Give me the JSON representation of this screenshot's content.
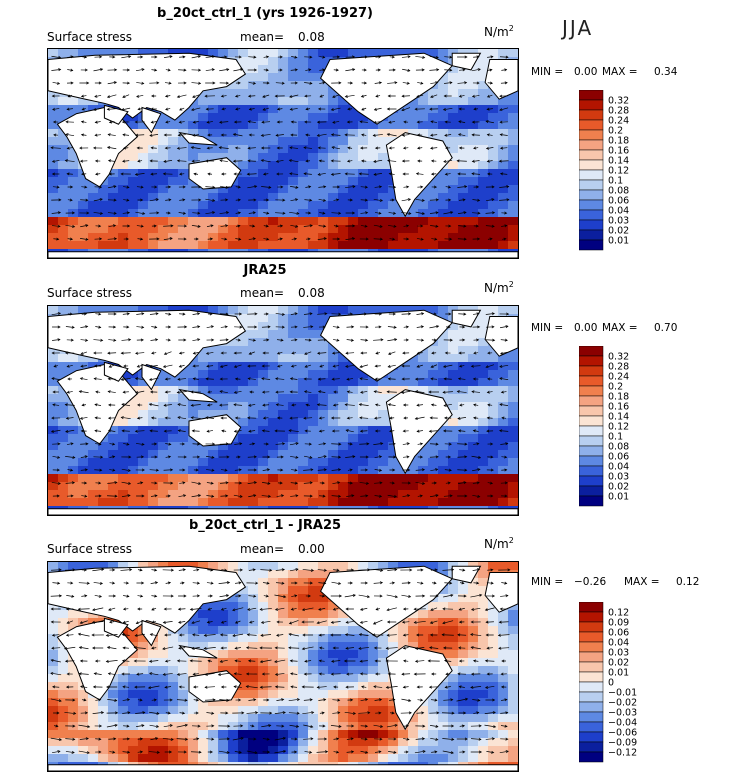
{
  "season": "JJA",
  "panels": [
    {
      "title": "b_20ct_ctrl_1 (yrs 1926-1927)",
      "variable": "Surface stress",
      "mean_label": "mean=",
      "mean_value": "0.08",
      "units": "N/m",
      "units_exp": "2",
      "min_label": "MIN =",
      "min_value": "0.00",
      "max_label": "MAX =",
      "max_value": "0.34",
      "levels": [
        "0.32",
        "0.28",
        "0.24",
        "0.2",
        "0.18",
        "0.16",
        "0.14",
        "0.12",
        "0.1",
        "0.08",
        "0.06",
        "0.04",
        "0.03",
        "0.02",
        "0.01"
      ],
      "colors": [
        "#8b0000",
        "#b31400",
        "#d23a10",
        "#e85a2a",
        "#f0804e",
        "#f4a382",
        "#f8c6ac",
        "#fbe4d4",
        "#dfe9f7",
        "#b8cff0",
        "#8fb0ea",
        "#5e89e3",
        "#3a63db",
        "#1e3fcb",
        "#0b1f9e",
        "#000080"
      ]
    },
    {
      "title": "JRA25",
      "variable": "Surface stress",
      "mean_label": "mean=",
      "mean_value": "0.08",
      "units": "N/m",
      "units_exp": "2",
      "min_label": "MIN =",
      "min_value": "0.00",
      "max_label": "MAX =",
      "max_value": "0.70",
      "levels": [
        "0.32",
        "0.28",
        "0.24",
        "0.2",
        "0.18",
        "0.16",
        "0.14",
        "0.12",
        "0.1",
        "0.08",
        "0.06",
        "0.04",
        "0.03",
        "0.02",
        "0.01"
      ],
      "colors": [
        "#8b0000",
        "#b31400",
        "#d23a10",
        "#e85a2a",
        "#f0804e",
        "#f4a382",
        "#f8c6ac",
        "#fbe4d4",
        "#dfe9f7",
        "#b8cff0",
        "#8fb0ea",
        "#5e89e3",
        "#3a63db",
        "#1e3fcb",
        "#0b1f9e",
        "#000080"
      ]
    },
    {
      "title": "b_20ct_ctrl_1 - JRA25",
      "variable": "Surface stress",
      "mean_label": "mean=",
      "mean_value": "0.00",
      "units": "N/m",
      "units_exp": "2",
      "min_label": "MIN =",
      "min_value": "−0.26",
      "max_label": "MAX =",
      "max_value": "0.12",
      "levels": [
        "0.12",
        "0.09",
        "0.06",
        "0.04",
        "0.03",
        "0.02",
        "0.01",
        "0",
        "−0.01",
        "−0.02",
        "−0.03",
        "−0.04",
        "−0.06",
        "−0.09",
        "−0.12"
      ],
      "colors": [
        "#8b0000",
        "#b31400",
        "#d23a10",
        "#e85a2a",
        "#f0804e",
        "#f4a382",
        "#f8c6ac",
        "#fbe4d4",
        "#dfe9f7",
        "#b8cff0",
        "#8fb0ea",
        "#5e89e3",
        "#3a63db",
        "#1e3fcb",
        "#0b1f9e",
        "#000080"
      ]
    }
  ],
  "land_color": "#ffffff",
  "arrow_color": "#000000"
}
